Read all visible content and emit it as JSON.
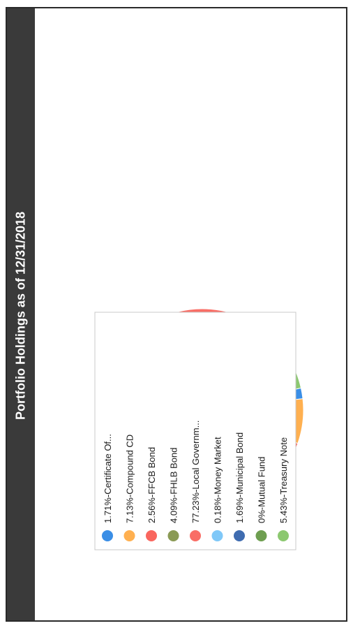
{
  "chart_data": {
    "type": "pie",
    "title": "Portfolio Holdings as of 12/31/2018",
    "categories": [
      "Certificate Of...",
      "Compound CD",
      "FFCB Bond",
      "FHLB Bond",
      "Local Governm...",
      "Money Market",
      "Municipal Bond",
      "Mutual Fund",
      "Treasury Note"
    ],
    "values": [
      1.71,
      7.13,
      2.56,
      4.09,
      77.23,
      0.18,
      1.69,
      0,
      5.43
    ],
    "legend_labels": [
      "1.71%-Certificate Of...",
      "7.13%-Compound CD",
      "2.56%-FFCB Bond",
      "4.09%-FHLB Bond",
      "77.23%-Local Governm...",
      "0.18%-Money Market",
      "1.69%-Municipal Bond",
      "0%-Mutual Fund",
      "5.43%-Treasury Note"
    ],
    "colors": [
      "#3a8ee6",
      "#ffb050",
      "#f9665e",
      "#8a9a55",
      "#f96e66",
      "#7fc8f8",
      "#3f6cb0",
      "#6e9e50",
      "#8cc870"
    ],
    "legend_position": "top"
  }
}
